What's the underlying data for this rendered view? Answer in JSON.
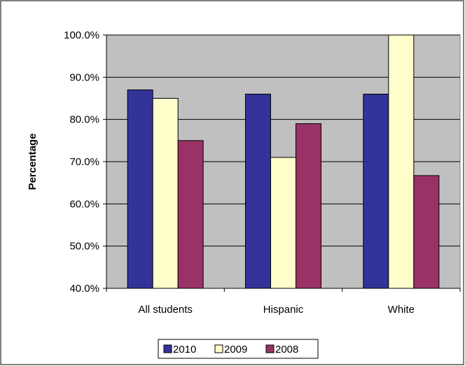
{
  "chart_data": {
    "type": "bar",
    "ylabel": "Percentage",
    "xlabel": "",
    "ylim": [
      40,
      100
    ],
    "yticks": [
      "40.0%",
      "50.0%",
      "60.0%",
      "70.0%",
      "80.0%",
      "90.0%",
      "100.0%"
    ],
    "ytick_values": [
      40,
      50,
      60,
      70,
      80,
      90,
      100
    ],
    "categories": [
      "All students",
      "Hispanic",
      "White"
    ],
    "series": [
      {
        "name": "2010",
        "color": "#333399",
        "values": [
          87,
          86,
          86
        ]
      },
      {
        "name": "2009",
        "color": "#FFFFCC",
        "values": [
          85,
          71,
          100
        ]
      },
      {
        "name": "2008",
        "color": "#993366",
        "values": [
          75,
          79,
          66.7
        ]
      }
    ],
    "legend_position": "bottom",
    "plot_background": "#C0C0C0",
    "grid": true
  }
}
